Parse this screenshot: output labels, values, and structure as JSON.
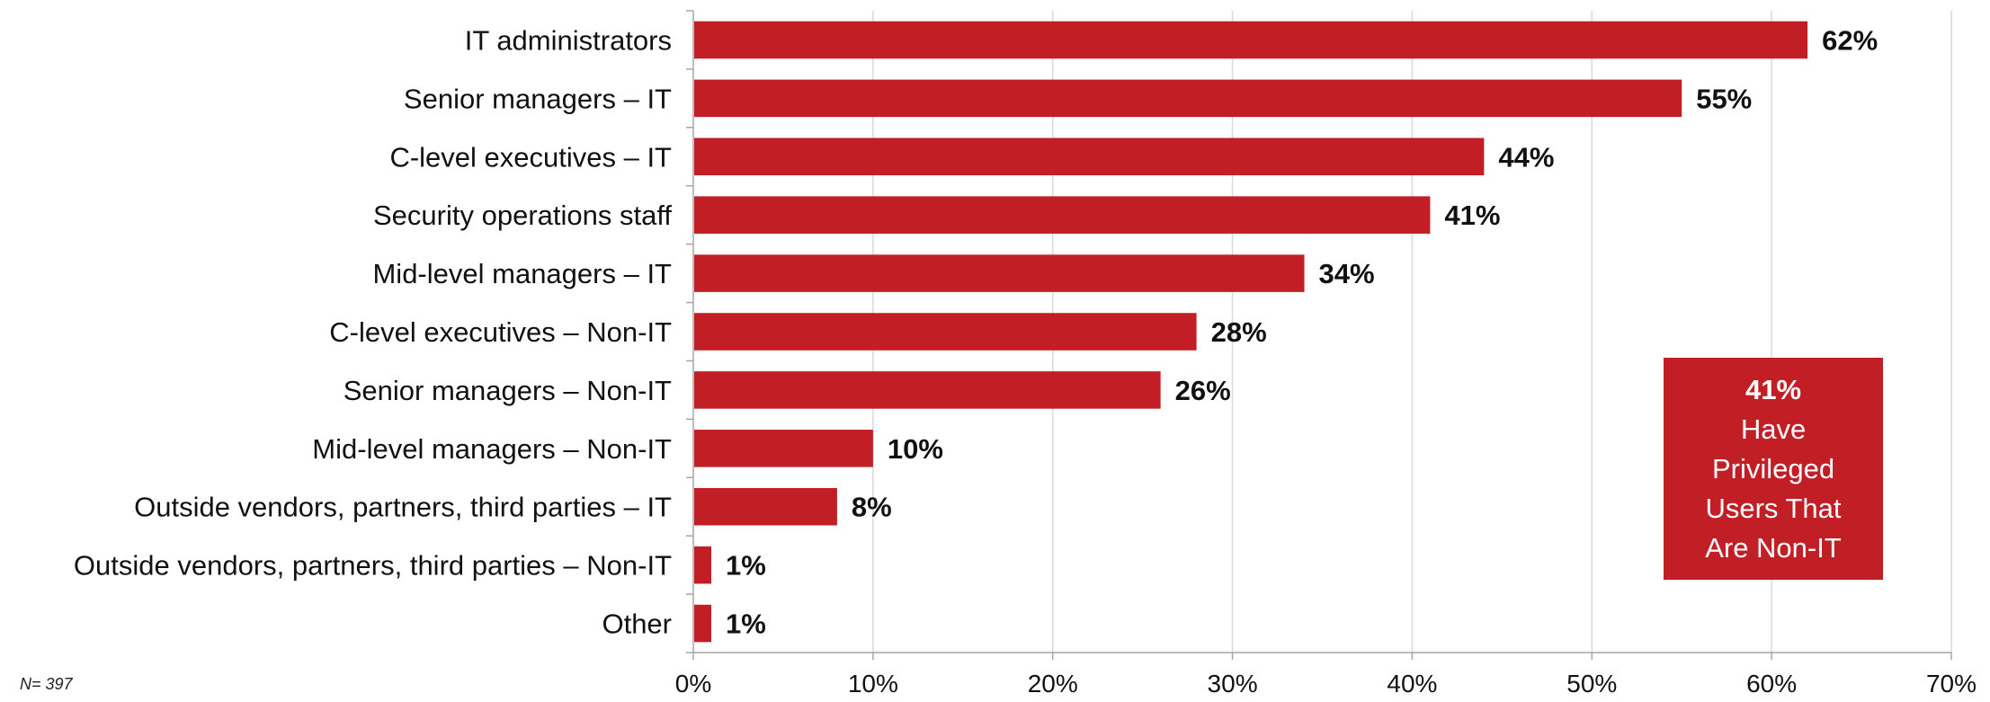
{
  "chart_data": {
    "type": "bar",
    "orientation": "horizontal",
    "categories": [
      "IT administrators",
      "Senior managers – IT",
      "C-level executives – IT",
      "Security operations staff",
      "Mid-level managers – IT",
      "C-level executives – Non-IT",
      "Senior managers – Non-IT",
      "Mid-level managers – Non-IT",
      "Outside vendors, partners, third parties – IT",
      "Outside vendors, partners, third parties – Non-IT",
      "Other"
    ],
    "values": [
      62,
      55,
      44,
      41,
      34,
      28,
      26,
      10,
      8,
      1,
      1
    ],
    "value_labels": [
      "62%",
      "55%",
      "44%",
      "41%",
      "34%",
      "28%",
      "26%",
      "10%",
      "8%",
      "1%",
      "1%"
    ],
    "xlim": [
      0,
      70
    ],
    "xticks": [
      0,
      10,
      20,
      30,
      40,
      50,
      60,
      70
    ],
    "xtick_labels": [
      "0%",
      "10%",
      "20%",
      "30%",
      "40%",
      "50%",
      "60%",
      "70%"
    ],
    "title": "",
    "xlabel": "",
    "ylabel": "",
    "grid": "vertical",
    "legend": "none",
    "bar_color": "#C21E25",
    "grid_color": "#D9D9D9",
    "axis_color": "#A6A6A6"
  },
  "callout": {
    "value": "41%",
    "text": "Have Privileged Users That Are Non-IT",
    "color": "#C21E25"
  },
  "note": "N= 397"
}
